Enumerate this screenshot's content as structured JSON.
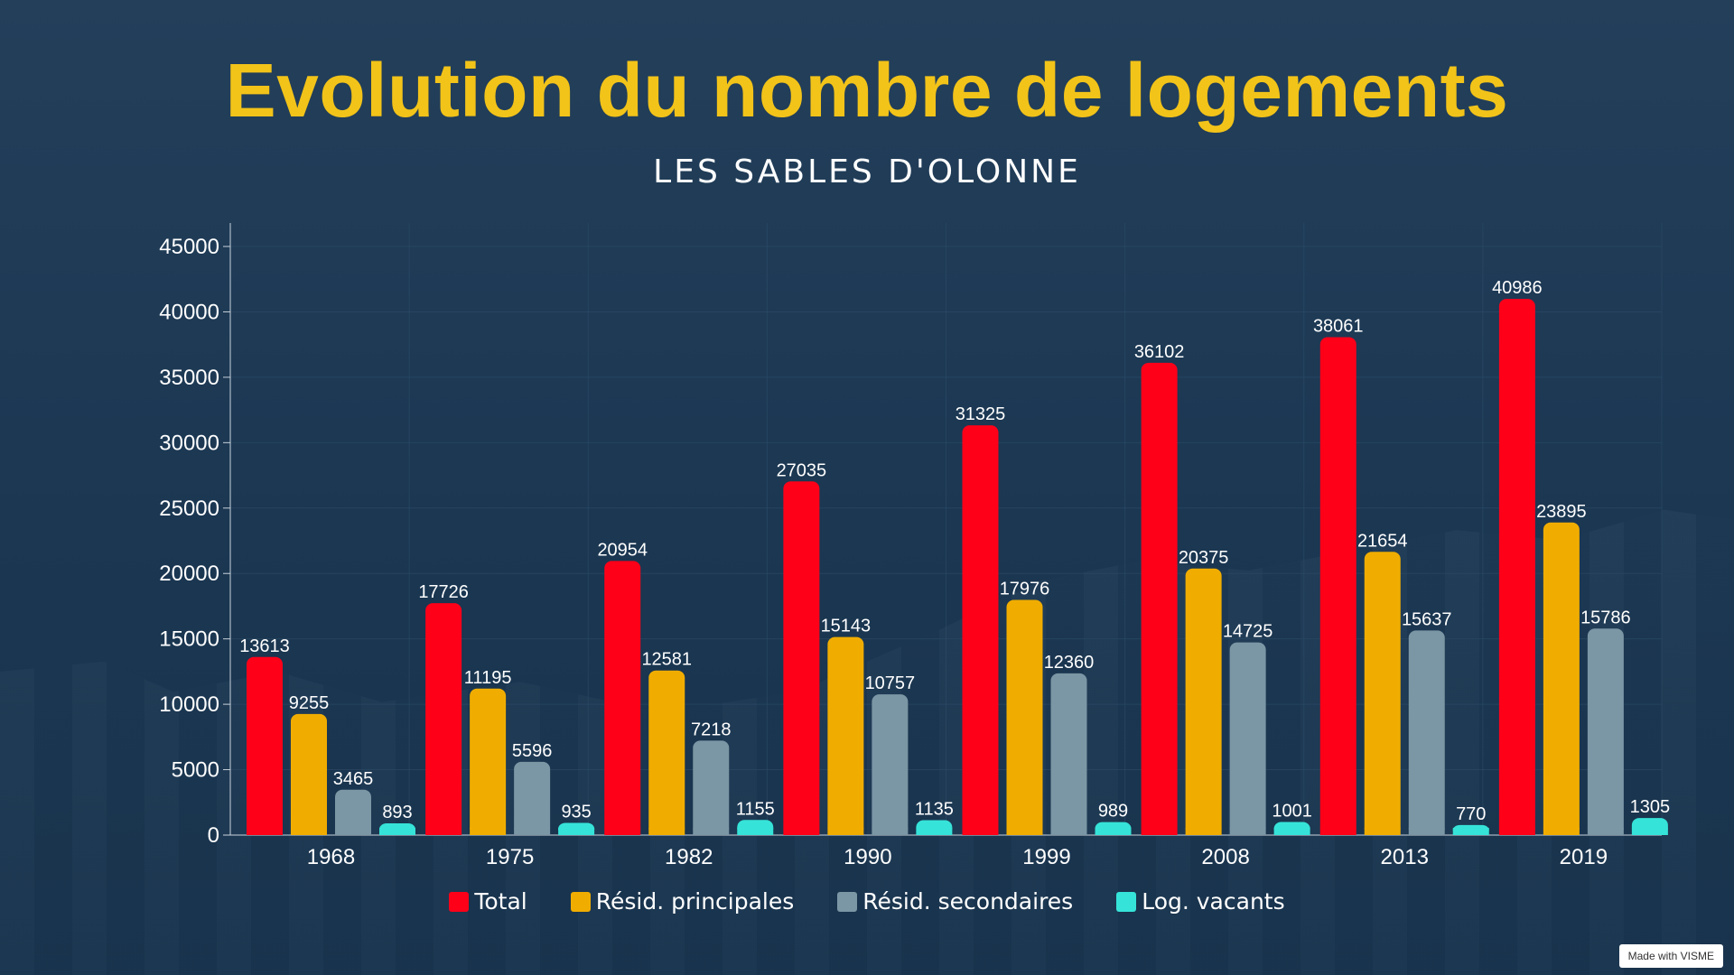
{
  "title": "Evolution du nombre de logements",
  "subtitle": "LES SABLES D'OLONNE",
  "watermark": "Made with VISME",
  "colors": {
    "background": "#1c3853",
    "title": "#f2c319",
    "grid": "#2d4c68",
    "axis": "#c9d3dc"
  },
  "chart_data": {
    "type": "bar",
    "title": "Evolution du nombre de logements",
    "subtitle": "LES SABLES D'OLONNE",
    "xlabel": "",
    "ylabel": "",
    "categories": [
      "1968",
      "1975",
      "1982",
      "1990",
      "1999",
      "2008",
      "2013",
      "2019"
    ],
    "ylim": [
      0,
      45000
    ],
    "yticks": [
      0,
      5000,
      10000,
      15000,
      20000,
      25000,
      30000,
      35000,
      40000,
      45000
    ],
    "grid": true,
    "legend_position": "bottom",
    "data_labels": true,
    "series": [
      {
        "name": "Total",
        "color": "#ff0019",
        "values": [
          13613,
          17726,
          20954,
          27035,
          31325,
          36102,
          38061,
          40986
        ]
      },
      {
        "name": "Résid. principales",
        "color": "#f0ad00",
        "values": [
          9255,
          11195,
          12581,
          15143,
          17976,
          20375,
          21654,
          23895
        ]
      },
      {
        "name": "Résid. secondaires",
        "color": "#7b96a4",
        "values": [
          3465,
          5596,
          7218,
          10757,
          12360,
          14725,
          15637,
          15786
        ]
      },
      {
        "name": "Log. vacants",
        "color": "#36e3d8",
        "values": [
          893,
          935,
          1155,
          1135,
          989,
          1001,
          770,
          1305
        ]
      }
    ]
  }
}
